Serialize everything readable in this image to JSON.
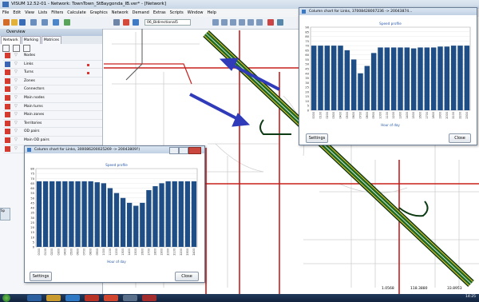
{
  "app": {
    "title": "VISUM 12.52-01 - Network: TownTown_StBaygonda_IB.ver* - [Network]",
    "menu": [
      "File",
      "Edit",
      "View",
      "Lists",
      "Filters",
      "Calculate",
      "Graphics",
      "Network",
      "Demand",
      "Extras",
      "Scripts",
      "Window",
      "Help"
    ],
    "toolbar": {
      "selector_value": "06_Bidirectional5"
    }
  },
  "sidebar": {
    "header": "Overview",
    "tabs": [
      "Network",
      "Marking",
      "Matrices"
    ],
    "items": [
      {
        "label": "Nodes",
        "icon": "node-icon",
        "color": "#d63a2f"
      },
      {
        "label": "Links",
        "icon": "link-icon",
        "color": "#3c64b4"
      },
      {
        "label": "Turns",
        "icon": "turn-icon",
        "color": "#d63a2f"
      },
      {
        "label": "Zones",
        "icon": "zone-icon",
        "color": "#d63a2f"
      },
      {
        "label": "Connectors",
        "icon": "connector-icon",
        "color": "#d63a2f"
      },
      {
        "label": "Main nodes",
        "icon": "main-node-icon",
        "color": "#d63a2f"
      },
      {
        "label": "Main turns",
        "icon": "main-turn-icon",
        "color": "#d63a2f"
      },
      {
        "label": "Main zones",
        "icon": "main-zone-icon",
        "color": "#d63a2f"
      },
      {
        "label": "Territories",
        "icon": "territory-icon",
        "color": "#d63a2f"
      },
      {
        "label": "OD pairs",
        "icon": "od-pair-icon",
        "color": "#d63a2f"
      },
      {
        "label": "Main OD pairs",
        "icon": "main-od-pair-icon",
        "color": "#d63a2f"
      },
      {
        "label": "PrT paths",
        "icon": "prt-path-icon",
        "color": "#d63a2f"
      }
    ],
    "bottom_tab": "Sp"
  },
  "chart_right": {
    "window_title": "Column chart for Links, 37008428007236 -> 20043874...",
    "settings_label": "Settings",
    "close_label": "Close",
    "chart_data": {
      "type": "bar",
      "title": "Speed profile",
      "xlabel": "Hour of day",
      "ylabel": "",
      "ylim": [
        0,
        90
      ],
      "yticks": [
        0,
        5,
        10,
        15,
        20,
        25,
        30,
        35,
        40,
        45,
        50,
        55,
        60,
        65,
        70,
        75,
        80,
        85,
        90
      ],
      "categories": [
        "0000",
        "0100",
        "0200",
        "0300",
        "0400",
        "0500",
        "0600",
        "0700",
        "0800",
        "0900",
        "1000",
        "1100",
        "1200",
        "1300",
        "1400",
        "1500",
        "1600",
        "1700",
        "1800",
        "1900",
        "2000",
        "2100",
        "2200",
        "2300"
      ],
      "values": [
        70,
        70,
        70,
        70,
        70,
        65,
        55,
        40,
        48,
        62,
        68,
        68,
        68,
        68,
        68,
        67,
        68,
        68,
        68,
        69,
        69,
        70,
        70,
        70
      ]
    }
  },
  "chart_left": {
    "window_title": "Column chart for Links, 300086200025269 -> 20043809?)",
    "settings_label": "Settings",
    "close_label": "Close",
    "chart_data": {
      "type": "bar",
      "title": "Speed profile",
      "xlabel": "Hour of day",
      "ylabel": "",
      "ylim": [
        0,
        80
      ],
      "yticks": [
        0,
        5,
        10,
        15,
        20,
        25,
        30,
        35,
        40,
        45,
        50,
        55,
        60,
        65,
        70,
        75,
        80
      ],
      "categories": [
        "0000",
        "0100",
        "0200",
        "0300",
        "0400",
        "0500",
        "0600",
        "0700",
        "0800",
        "0900",
        "1000",
        "1100",
        "1200",
        "1300",
        "1400",
        "1500",
        "1600",
        "1700",
        "1800",
        "1900",
        "2000",
        "2100",
        "2200",
        "2300",
        "2400"
      ],
      "values": [
        67,
        67,
        67,
        67,
        67,
        67,
        67,
        67,
        67,
        66,
        65,
        60,
        55,
        50,
        45,
        42,
        45,
        58,
        62,
        65,
        67,
        67,
        67,
        67,
        67
      ]
    }
  },
  "statusbar": {
    "v1": "1.0568",
    "v2": "118.3880",
    "v3": "33.8953"
  },
  "taskbar": {
    "clock": "14:25"
  }
}
